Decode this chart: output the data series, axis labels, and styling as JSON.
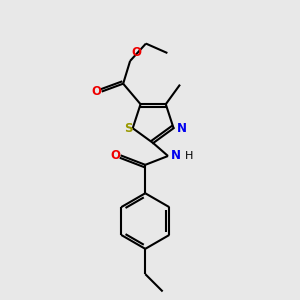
{
  "bg_color": "#e8e8e8",
  "lw": 1.5,
  "dbo": 0.08,
  "atom_colors": {
    "S": "#999900",
    "N": "#0000ee",
    "O": "#ee0000",
    "C": "#000000"
  },
  "fs": 8.5,
  "xlim": [
    2.8,
    7.2
  ],
  "ylim": [
    0.5,
    10.0
  ]
}
